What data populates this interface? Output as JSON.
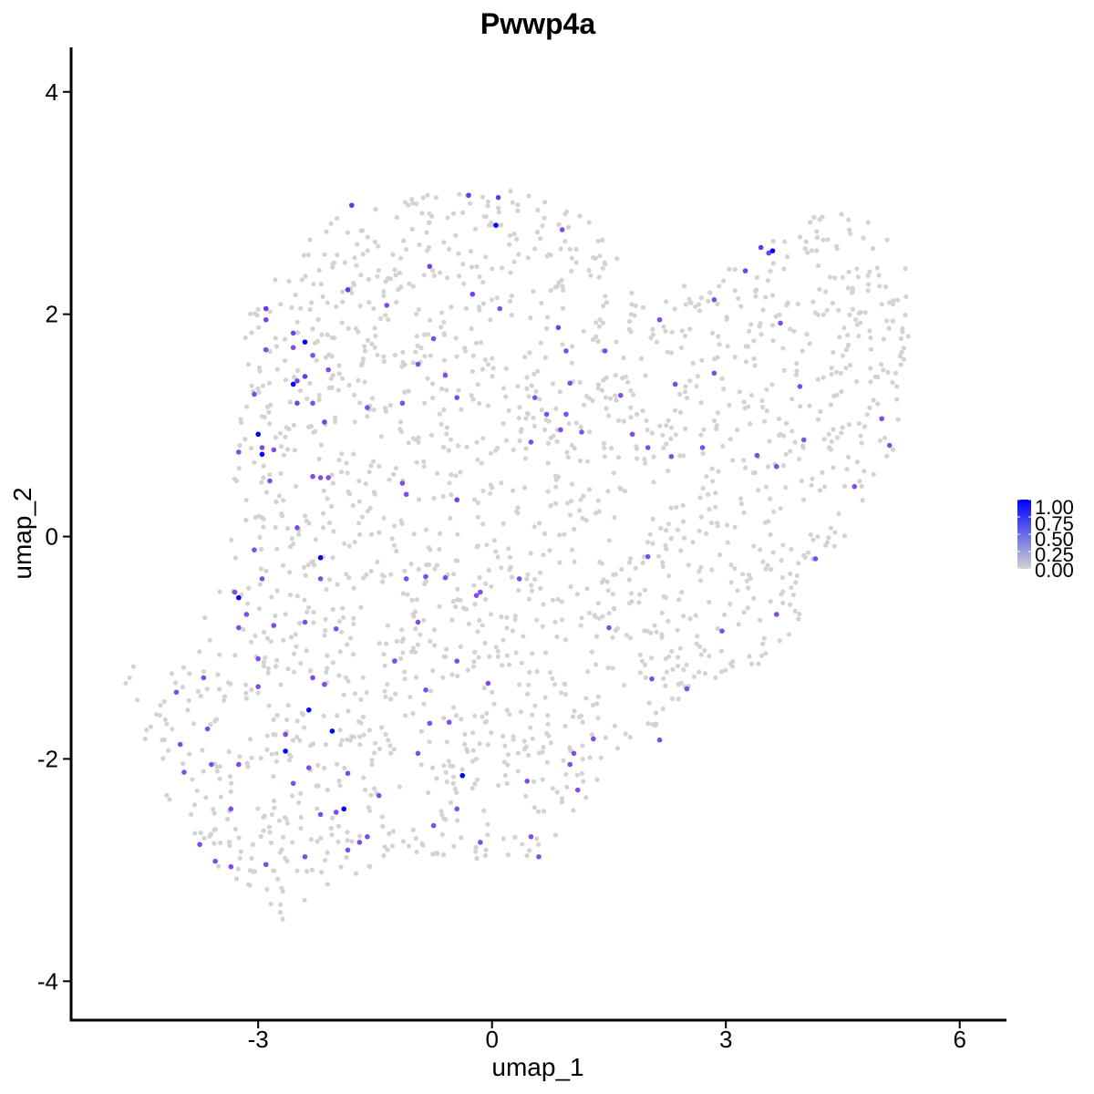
{
  "chart_data": {
    "type": "scatter",
    "title": "Pwwp4a",
    "xlabel": "umap_1",
    "ylabel": "umap_2",
    "xlim": [
      -5.4,
      6.6
    ],
    "ylim": [
      -4.35,
      4.4
    ],
    "x_ticks": [
      -3,
      0,
      3,
      6
    ],
    "x_tick_labels": [
      "-3",
      "0",
      "3",
      "6"
    ],
    "y_ticks": [
      -4,
      -2,
      0,
      2,
      4
    ],
    "y_tick_labels": [
      "-4",
      "-2",
      "0",
      "2",
      "4"
    ],
    "grid": false,
    "legend": {
      "placement": "right",
      "type": "colorbar",
      "labels": [
        "1.00",
        "0.75",
        "0.50",
        "0.25",
        "0.00"
      ],
      "low_color": "#D3D3D3",
      "high_color": "#0000FF"
    },
    "background_color": "#D3D3D3",
    "background_cells_count_approx": 1900,
    "expressing_cells": [
      {
        "x": 0.05,
        "y": 2.8,
        "v": 1.0
      },
      {
        "x": 3.6,
        "y": 2.57,
        "v": 1.0
      },
      {
        "x": 3.45,
        "y": 2.6,
        "v": 0.6
      },
      {
        "x": -2.4,
        "y": 1.75,
        "v": 1.0
      },
      {
        "x": -2.55,
        "y": 1.37,
        "v": 1.0
      },
      {
        "x": -3.0,
        "y": 0.92,
        "v": 1.0
      },
      {
        "x": -2.95,
        "y": 0.74,
        "v": 1.0
      },
      {
        "x": -2.2,
        "y": -0.19,
        "v": 1.0
      },
      {
        "x": -3.25,
        "y": -0.55,
        "v": 1.0
      },
      {
        "x": -2.35,
        "y": -1.56,
        "v": 1.0
      },
      {
        "x": -2.65,
        "y": -1.93,
        "v": 1.0
      },
      {
        "x": -2.05,
        "y": -1.75,
        "v": 1.0
      },
      {
        "x": -1.9,
        "y": -2.45,
        "v": 1.0
      },
      {
        "x": -0.38,
        "y": -2.15,
        "v": 1.0
      },
      {
        "x": -0.3,
        "y": 3.07,
        "v": 0.6
      },
      {
        "x": 0.08,
        "y": 3.05,
        "v": 0.6
      },
      {
        "x": -1.8,
        "y": 2.98,
        "v": 0.6
      },
      {
        "x": 0.9,
        "y": 2.76,
        "v": 0.5
      },
      {
        "x": -0.8,
        "y": 2.43,
        "v": 0.55
      },
      {
        "x": -0.25,
        "y": 2.18,
        "v": 0.55
      },
      {
        "x": 0.1,
        "y": 2.05,
        "v": 0.5
      },
      {
        "x": -1.85,
        "y": 2.22,
        "v": 0.6
      },
      {
        "x": -1.35,
        "y": 2.08,
        "v": 0.5
      },
      {
        "x": -2.9,
        "y": 2.05,
        "v": 0.6
      },
      {
        "x": -2.9,
        "y": 1.95,
        "v": 0.55
      },
      {
        "x": -2.55,
        "y": 1.83,
        "v": 0.55
      },
      {
        "x": -2.55,
        "y": 1.7,
        "v": 0.5
      },
      {
        "x": -2.9,
        "y": 1.68,
        "v": 0.5
      },
      {
        "x": -2.3,
        "y": 1.63,
        "v": 0.5
      },
      {
        "x": -2.4,
        "y": 1.44,
        "v": 0.6
      },
      {
        "x": -2.5,
        "y": 1.4,
        "v": 0.55
      },
      {
        "x": -2.1,
        "y": 1.5,
        "v": 0.5
      },
      {
        "x": -2.3,
        "y": 1.2,
        "v": 0.5
      },
      {
        "x": -2.15,
        "y": 1.03,
        "v": 0.55
      },
      {
        "x": -3.05,
        "y": 1.28,
        "v": 0.5
      },
      {
        "x": -2.5,
        "y": 1.2,
        "v": 0.55
      },
      {
        "x": -1.6,
        "y": 1.16,
        "v": 0.5
      },
      {
        "x": -1.15,
        "y": 1.2,
        "v": 0.5
      },
      {
        "x": -0.95,
        "y": 1.55,
        "v": 0.5
      },
      {
        "x": -0.75,
        "y": 1.78,
        "v": 0.5
      },
      {
        "x": -0.6,
        "y": 1.45,
        "v": 0.5
      },
      {
        "x": -0.45,
        "y": 1.25,
        "v": 0.5
      },
      {
        "x": 0.85,
        "y": 1.88,
        "v": 0.55
      },
      {
        "x": 0.95,
        "y": 1.67,
        "v": 0.5
      },
      {
        "x": 1.45,
        "y": 1.67,
        "v": 0.5
      },
      {
        "x": 1.0,
        "y": 1.38,
        "v": 0.5
      },
      {
        "x": 0.55,
        "y": 1.25,
        "v": 0.5
      },
      {
        "x": 0.7,
        "y": 1.1,
        "v": 0.5
      },
      {
        "x": 0.95,
        "y": 1.1,
        "v": 0.5
      },
      {
        "x": 0.88,
        "y": 0.96,
        "v": 0.5
      },
      {
        "x": 1.15,
        "y": 0.94,
        "v": 0.5
      },
      {
        "x": 1.65,
        "y": 1.27,
        "v": 0.5
      },
      {
        "x": 2.15,
        "y": 1.95,
        "v": 0.5
      },
      {
        "x": 2.35,
        "y": 1.37,
        "v": 0.5
      },
      {
        "x": 2.85,
        "y": 2.13,
        "v": 0.5
      },
      {
        "x": 3.25,
        "y": 2.39,
        "v": 0.55
      },
      {
        "x": 2.85,
        "y": 1.47,
        "v": 0.5
      },
      {
        "x": 1.8,
        "y": 0.92,
        "v": 0.5
      },
      {
        "x": 2.0,
        "y": 0.8,
        "v": 0.5
      },
      {
        "x": 2.3,
        "y": 0.72,
        "v": 0.5
      },
      {
        "x": 2.7,
        "y": 0.8,
        "v": 0.5
      },
      {
        "x": 0.5,
        "y": 0.85,
        "v": 0.5
      },
      {
        "x": -2.95,
        "y": 0.8,
        "v": 0.5
      },
      {
        "x": -3.25,
        "y": 0.76,
        "v": 0.5
      },
      {
        "x": -2.8,
        "y": 0.78,
        "v": 0.5
      },
      {
        "x": -2.85,
        "y": 0.5,
        "v": 0.5
      },
      {
        "x": -2.3,
        "y": 0.54,
        "v": 0.5
      },
      {
        "x": -2.2,
        "y": 0.53,
        "v": 0.5
      },
      {
        "x": -2.1,
        "y": 0.53,
        "v": 0.5
      },
      {
        "x": -1.15,
        "y": 0.48,
        "v": 0.5
      },
      {
        "x": -1.1,
        "y": 0.38,
        "v": 0.5
      },
      {
        "x": -0.45,
        "y": 0.33,
        "v": 0.55
      },
      {
        "x": -2.5,
        "y": 0.08,
        "v": 0.5
      },
      {
        "x": -3.05,
        "y": -0.12,
        "v": 0.5
      },
      {
        "x": -2.95,
        "y": -0.38,
        "v": 0.5
      },
      {
        "x": -2.2,
        "y": -0.38,
        "v": 0.5
      },
      {
        "x": -1.1,
        "y": -0.38,
        "v": 0.5
      },
      {
        "x": -0.85,
        "y": -0.36,
        "v": 0.5
      },
      {
        "x": -0.6,
        "y": -0.37,
        "v": 0.5
      },
      {
        "x": -0.15,
        "y": -0.5,
        "v": 0.5
      },
      {
        "x": -0.2,
        "y": -0.53,
        "v": 0.5
      },
      {
        "x": 0.35,
        "y": -0.38,
        "v": 0.5
      },
      {
        "x": 2.0,
        "y": -0.18,
        "v": 0.5
      },
      {
        "x": 3.65,
        "y": -0.7,
        "v": 0.5
      },
      {
        "x": 1.5,
        "y": -0.82,
        "v": 0.5
      },
      {
        "x": -3.3,
        "y": -0.5,
        "v": 0.5
      },
      {
        "x": -3.15,
        "y": -0.7,
        "v": 0.5
      },
      {
        "x": -3.25,
        "y": -0.82,
        "v": 0.5
      },
      {
        "x": -2.8,
        "y": -0.8,
        "v": 0.5
      },
      {
        "x": -2.4,
        "y": -0.77,
        "v": 0.5
      },
      {
        "x": -2.0,
        "y": -0.83,
        "v": 0.5
      },
      {
        "x": -0.95,
        "y": -0.77,
        "v": 0.5
      },
      {
        "x": -1.25,
        "y": -1.12,
        "v": 0.5
      },
      {
        "x": -0.45,
        "y": -1.12,
        "v": 0.5
      },
      {
        "x": -3.0,
        "y": -1.1,
        "v": 0.5
      },
      {
        "x": -3.0,
        "y": -1.35,
        "v": 0.5
      },
      {
        "x": -2.3,
        "y": -1.27,
        "v": 0.5
      },
      {
        "x": -2.15,
        "y": -1.33,
        "v": 0.5
      },
      {
        "x": -0.85,
        "y": -1.38,
        "v": 0.5
      },
      {
        "x": -0.05,
        "y": -1.32,
        "v": 0.5
      },
      {
        "x": 1.3,
        "y": -1.82,
        "v": 0.5
      },
      {
        "x": 2.05,
        "y": -1.28,
        "v": 0.5
      },
      {
        "x": 2.5,
        "y": -1.37,
        "v": 0.5
      },
      {
        "x": 2.95,
        "y": -0.85,
        "v": 0.5
      },
      {
        "x": 2.15,
        "y": -1.83,
        "v": 0.5
      },
      {
        "x": -0.8,
        "y": -1.68,
        "v": 0.5
      },
      {
        "x": -0.55,
        "y": -1.67,
        "v": 0.5
      },
      {
        "x": -3.7,
        "y": -1.27,
        "v": 0.5
      },
      {
        "x": -4.05,
        "y": -1.4,
        "v": 0.5
      },
      {
        "x": -3.65,
        "y": -1.73,
        "v": 0.5
      },
      {
        "x": -4.0,
        "y": -1.87,
        "v": 0.5
      },
      {
        "x": -3.6,
        "y": -2.05,
        "v": 0.5
      },
      {
        "x": -3.95,
        "y": -2.12,
        "v": 0.5
      },
      {
        "x": -3.25,
        "y": -2.05,
        "v": 0.5
      },
      {
        "x": -2.65,
        "y": -1.78,
        "v": 0.5
      },
      {
        "x": -2.55,
        "y": -2.22,
        "v": 0.5
      },
      {
        "x": -2.35,
        "y": -2.08,
        "v": 0.5
      },
      {
        "x": -1.85,
        "y": -2.13,
        "v": 0.5
      },
      {
        "x": -1.45,
        "y": -2.33,
        "v": 0.5
      },
      {
        "x": -0.95,
        "y": -1.95,
        "v": 0.5
      },
      {
        "x": 1.05,
        "y": -1.95,
        "v": 0.5
      },
      {
        "x": 1.0,
        "y": -2.05,
        "v": 0.5
      },
      {
        "x": 1.1,
        "y": -2.28,
        "v": 0.5
      },
      {
        "x": 0.45,
        "y": -2.2,
        "v": 0.5
      },
      {
        "x": -0.45,
        "y": -2.45,
        "v": 0.5
      },
      {
        "x": -2.0,
        "y": -2.48,
        "v": 0.5
      },
      {
        "x": -2.2,
        "y": -2.5,
        "v": 0.5
      },
      {
        "x": -3.35,
        "y": -2.45,
        "v": 0.5
      },
      {
        "x": -3.75,
        "y": -2.77,
        "v": 0.5
      },
      {
        "x": -3.55,
        "y": -2.92,
        "v": 0.5
      },
      {
        "x": -3.35,
        "y": -2.97,
        "v": 0.5
      },
      {
        "x": -2.9,
        "y": -2.95,
        "v": 0.5
      },
      {
        "x": -2.4,
        "y": -2.88,
        "v": 0.5
      },
      {
        "x": -1.85,
        "y": -2.82,
        "v": 0.5
      },
      {
        "x": -1.7,
        "y": -2.75,
        "v": 0.5
      },
      {
        "x": -1.6,
        "y": -2.7,
        "v": 0.5
      },
      {
        "x": -0.75,
        "y": -2.6,
        "v": 0.5
      },
      {
        "x": -0.15,
        "y": -2.75,
        "v": 0.5
      },
      {
        "x": 0.5,
        "y": -2.7,
        "v": 0.5
      },
      {
        "x": 0.6,
        "y": -2.88,
        "v": 0.5
      },
      {
        "x": 3.55,
        "y": 2.55,
        "v": 0.55
      },
      {
        "x": 3.7,
        "y": 1.92,
        "v": 0.5
      },
      {
        "x": 3.95,
        "y": 1.35,
        "v": 0.5
      },
      {
        "x": 4.0,
        "y": 0.87,
        "v": 0.5
      },
      {
        "x": 3.4,
        "y": 0.73,
        "v": 0.5
      },
      {
        "x": 3.65,
        "y": 0.63,
        "v": 0.5
      },
      {
        "x": 4.15,
        "y": -0.2,
        "v": 0.5
      },
      {
        "x": 4.65,
        "y": 0.45,
        "v": 0.5
      },
      {
        "x": 5.0,
        "y": 1.06,
        "v": 0.5
      },
      {
        "x": 5.1,
        "y": 0.82,
        "v": 0.5
      }
    ]
  }
}
